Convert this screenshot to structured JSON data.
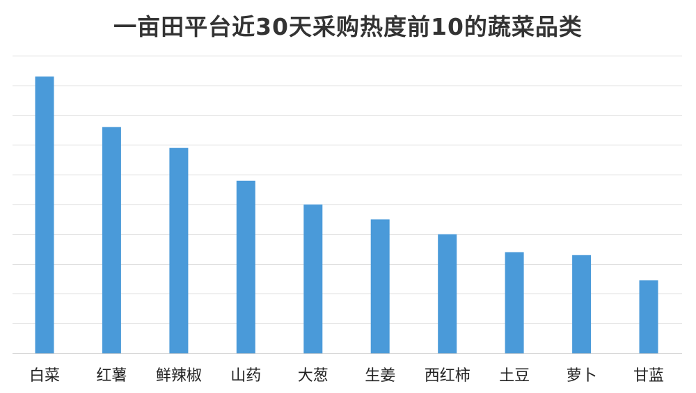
{
  "chart_data": {
    "type": "bar",
    "title": "一亩田平台近30天采购热度前10的蔬菜品类",
    "xlabel": "",
    "ylabel": "",
    "categories": [
      "白菜",
      "红薯",
      "鲜辣椒",
      "山药",
      "大葱",
      "生姜",
      "西红柿",
      "土豆",
      "萝卜",
      "甘蓝"
    ],
    "values": [
      93,
      76,
      69,
      58,
      50,
      45,
      40,
      34,
      33,
      24.5
    ],
    "ylim": [
      0,
      100
    ],
    "y_ticks_shown": false,
    "grid": true,
    "legend": "none",
    "colors": {
      "bar": "#4a9ad9",
      "grid": "#dcdcdc",
      "title": "#333333"
    }
  }
}
